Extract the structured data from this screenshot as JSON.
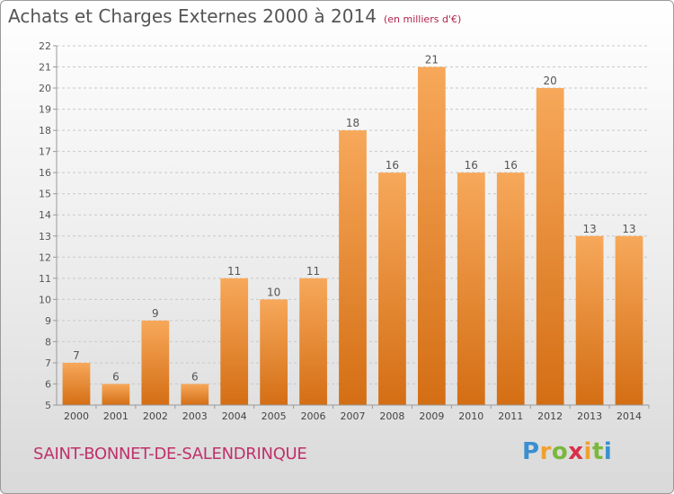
{
  "header": {
    "title": "Achats et Charges Externes 2000 à 2014",
    "unit": "(en milliers d'€)"
  },
  "footer": {
    "city": "SAINT-BONNET-DE-SALENDRINQUE",
    "logo": "Proxiti"
  },
  "colors": {
    "bar_top": "#f7a85a",
    "bar_bottom": "#d46e14",
    "label": "#555555",
    "city": "#c0306a"
  },
  "chart_data": {
    "type": "bar",
    "title": "Achats et Charges Externes 2000 à 2014",
    "subtitle": "(en milliers d'€)",
    "categories": [
      "2000",
      "2001",
      "2002",
      "2003",
      "2004",
      "2005",
      "2006",
      "2007",
      "2008",
      "2009",
      "2010",
      "2011",
      "2012",
      "2013",
      "2014"
    ],
    "values": [
      7,
      6,
      9,
      6,
      11,
      10,
      11,
      18,
      16,
      21,
      16,
      16,
      20,
      13,
      13
    ],
    "ylim": [
      5,
      22
    ],
    "yticks": [
      5,
      6,
      7,
      8,
      9,
      10,
      11,
      12,
      13,
      14,
      15,
      16,
      17,
      18,
      19,
      20,
      21,
      22
    ],
    "grid": "horizontal dashed",
    "data_labels": true
  }
}
